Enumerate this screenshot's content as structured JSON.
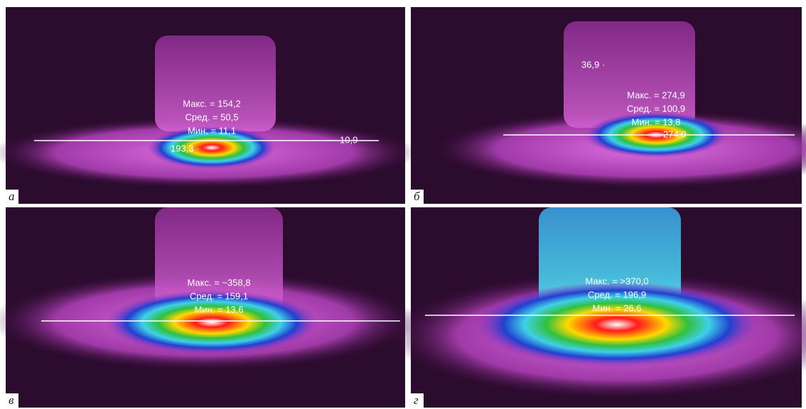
{
  "panels": [
    {
      "label": "а",
      "stats": [
        "Макс. = 154,2",
        "Сред. = 50,5",
        "Мин. = 11,1"
      ],
      "points": [
        "193,3 ·",
        "10,9 ·"
      ]
    },
    {
      "label": "б",
      "stats": [
        "Макс. = 274,9",
        "Сред. = 100,9",
        "Мин. = 13,8"
      ],
      "points": [
        "36,9 ·",
        "274,9"
      ]
    },
    {
      "label": "в",
      "stats": [
        "Макс. = ~358,8",
        "Сред. = 159,1",
        "Мин. = 13,6"
      ],
      "points": []
    },
    {
      "label": "г",
      "stats": [
        "Макс. = >370,0",
        "Сред. = 196,9",
        "Мин. = 26,6"
      ],
      "points": []
    }
  ]
}
